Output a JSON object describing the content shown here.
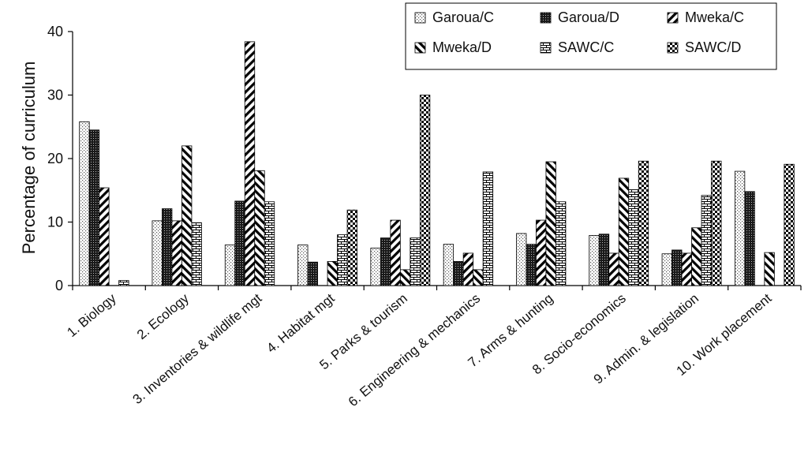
{
  "chart_data": {
    "type": "bar",
    "ylabel": "Percentage of curriculum",
    "ylim": [
      0,
      40
    ],
    "yticks": [
      0,
      10,
      20,
      30,
      40
    ],
    "grid": false,
    "legend_position": "top-right",
    "categories": [
      "1. Biology",
      "2. Ecology",
      "3. Inventories & wildlife mgt",
      "4. Habitat mgt",
      "5. Parks & tourism",
      "6. Engineering & mechanics",
      "7. Arms & hunting",
      "8. Socio-economics",
      "9. Admin. & legislation",
      "10. Work placement"
    ],
    "series": [
      {
        "name": "Garoua/C",
        "pattern": "dots",
        "values": [
          25.8,
          10.2,
          6.4,
          6.4,
          5.9,
          6.5,
          8.2,
          7.9,
          5.0,
          18.0
        ]
      },
      {
        "name": "Garoua/D",
        "pattern": "dark-dots",
        "values": [
          24.5,
          12.1,
          13.3,
          3.7,
          7.5,
          3.8,
          6.5,
          8.1,
          5.6,
          14.8
        ]
      },
      {
        "name": "Mweka/C",
        "pattern": "diag-right",
        "values": [
          15.4,
          10.2,
          38.4,
          0,
          10.3,
          5.1,
          10.3,
          5.1,
          5.1,
          0
        ]
      },
      {
        "name": "Mweka/D",
        "pattern": "diag-left",
        "values": [
          0,
          22.0,
          18.1,
          3.8,
          2.5,
          2.5,
          19.5,
          16.9,
          9.1,
          5.2
        ]
      },
      {
        "name": "SAWC/C",
        "pattern": "brick",
        "values": [
          0.8,
          9.9,
          13.2,
          8.0,
          7.5,
          17.9,
          13.2,
          15.1,
          14.2,
          0
        ]
      },
      {
        "name": "SAWC/D",
        "pattern": "checker",
        "values": [
          0,
          0,
          0,
          11.9,
          30.0,
          0,
          0,
          19.6,
          19.6,
          19.1
        ]
      }
    ]
  }
}
